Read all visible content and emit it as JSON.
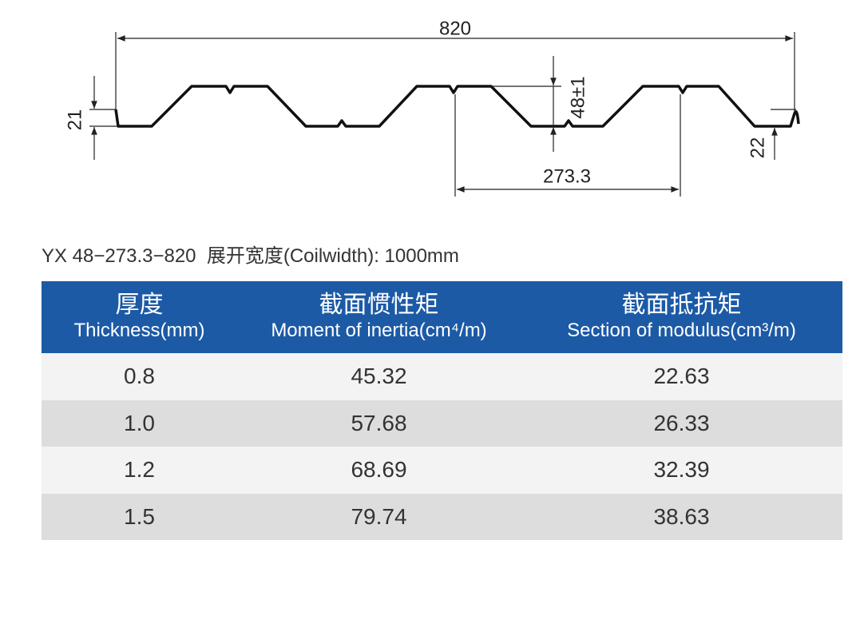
{
  "diagram": {
    "dimensions": [
      "820",
      "21",
      "48±1",
      "273.3",
      "22"
    ]
  },
  "spec": "YX 48−273.3−820  展开宽度(Coilwidth): 1000mm",
  "table": {
    "header": [
      {
        "zh": "厚度",
        "en": "Thickness(mm)"
      },
      {
        "zh": "截面惯性矩",
        "en": "Moment of inertia(cm⁴/m)"
      },
      {
        "zh": "截面抵抗矩",
        "en": "Section of modulus(cm³/m)"
      }
    ],
    "rows": [
      [
        "0.8",
        "45.32",
        "22.63"
      ],
      [
        "1.0",
        "57.68",
        "26.33"
      ],
      [
        "1.2",
        "68.69",
        "32.39"
      ],
      [
        "1.5",
        "79.74",
        "38.63"
      ]
    ]
  }
}
